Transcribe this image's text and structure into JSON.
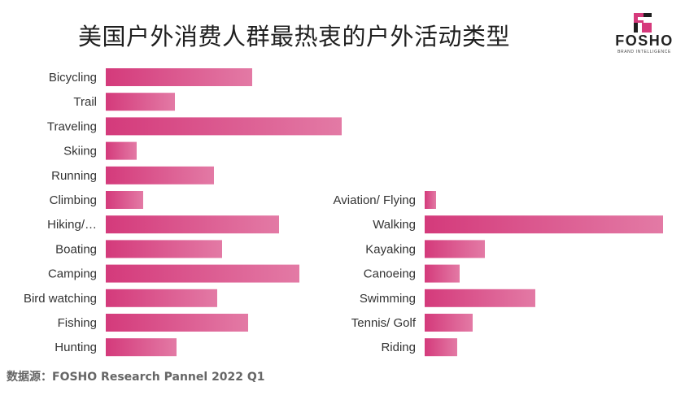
{
  "title": "美国户外消费人群最热衷的户外活动类型",
  "logo": {
    "word": "FOSHO",
    "tagline": "BRAND INTELLIGENCE"
  },
  "source": "数据源：FOSHO Research Pannel 2022 Q1",
  "colors": {
    "bar": "#d63a7c",
    "bar_light": "#e27aa4"
  },
  "chart_data": [
    {
      "type": "bar",
      "orientation": "horizontal",
      "categories": [
        "Bicycling",
        "Trail",
        "Traveling",
        "Skiing",
        "Running",
        "Climbing",
        "Hiking/…",
        "Boating",
        "Camping",
        "Bird watching",
        "Fishing",
        "Hunting"
      ],
      "values": [
        180,
        85,
        290,
        38,
        133,
        46,
        213,
        143,
        238,
        137,
        175,
        87
      ],
      "xlim": [
        0,
        300
      ]
    },
    {
      "type": "bar",
      "orientation": "horizontal",
      "categories": [
        "Aviation/ Flying",
        "Walking",
        "Kayaking",
        "Canoeing",
        "Swimming",
        "Tennis/ Golf",
        "Riding"
      ],
      "values": [
        14,
        293,
        74,
        43,
        136,
        59,
        40
      ],
      "xlim": [
        0,
        300
      ]
    }
  ]
}
